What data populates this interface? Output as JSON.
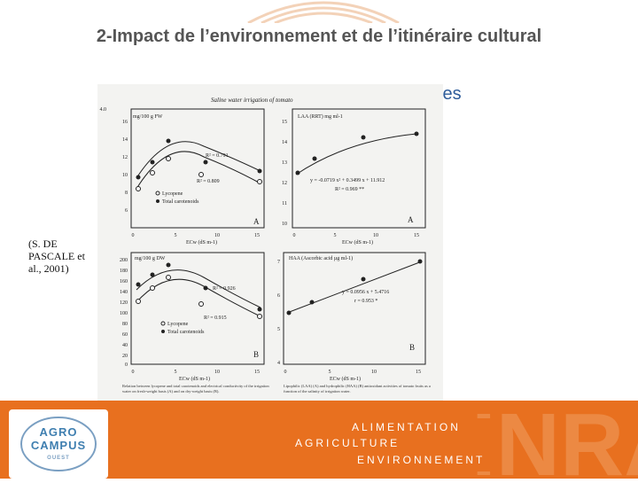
{
  "slide": {
    "title": "2-Impact de l’environnement et de l’itinéraire cultural",
    "subtitle_fragment": "les",
    "citation": "(S. DE PASCALE et al., 2001)"
  },
  "figure": {
    "header": "Saline water irrigation of tomato",
    "panels": [
      {
        "ylabel": "mg/100 g FW",
        "yticks": [
          "4.0",
          "6",
          "8",
          "10",
          "12",
          "14",
          "16"
        ],
        "xticks": [
          "0",
          "5",
          "10",
          "15"
        ],
        "xlabel": "ECw (dS m-1)",
        "letter": "A",
        "r2_top": "R² = 0.791",
        "r2_bottom": "R² = 0.809",
        "legend1": "Lycopene",
        "legend2": "Total carotenoids"
      },
      {
        "ylabel": "LAA (RRT) mg ml-1",
        "yticks": [
          "10",
          "11",
          "12",
          "13",
          "14",
          "15"
        ],
        "xticks": [
          "0",
          "5",
          "10",
          "15"
        ],
        "xlabel": "ECw (dS m-1)",
        "letter": "A",
        "equation": "y = -0.0719 x² + 0.3499 x + 11.912",
        "r2": "R² = 0.969 **"
      },
      {
        "ylabel": "mg/100 g DW",
        "yticks": [
          "0",
          "20",
          "40",
          "60",
          "80",
          "100",
          "120",
          "140",
          "160",
          "180",
          "200"
        ],
        "xticks": [
          "0",
          "5",
          "10",
          "15"
        ],
        "xlabel": "ECw (dS m-1)",
        "letter": "B",
        "r2_top": "R² = 0.926",
        "r2_bottom": "R² = 0.915",
        "legend1": "Lycopene",
        "legend2": "Total carotenoids"
      },
      {
        "ylabel": "HAA (Ascorbic acid µg ml-1)",
        "yticks": [
          "4",
          "5",
          "6",
          "7"
        ],
        "xticks": [
          "0",
          "5",
          "10",
          "15"
        ],
        "xlabel": "ECw (dS m-1)",
        "letter": "B",
        "equation": "y = 0.0956 x + 5.4716",
        "r2": "r = 0.953 *"
      }
    ],
    "caption_left": "Relation between lycopene and total carotenoids and electrical conductivity of the irrigation water on fresh-weight basis (A) and on dry-weight basis (B).",
    "caption_right": "Lipophilic (LAA) (A) and hydrophilic (HAA) (B) antioxidant activities of tomato fruits as a function of the salinity of irrigation water."
  },
  "footer": {
    "logo_line1": "AGRO",
    "logo_line2": "CAMPUS",
    "logo_line3": "OUEST",
    "word1": "ALIMENTATION",
    "word2": "AGRICULTURE",
    "word3": "ENVIRONNEMENT",
    "watermark": "INRA"
  },
  "colors": {
    "accent": "#e8701f",
    "title": "#555555",
    "subtitle": "#2e5c9a",
    "logo": "#3f7fb0"
  }
}
